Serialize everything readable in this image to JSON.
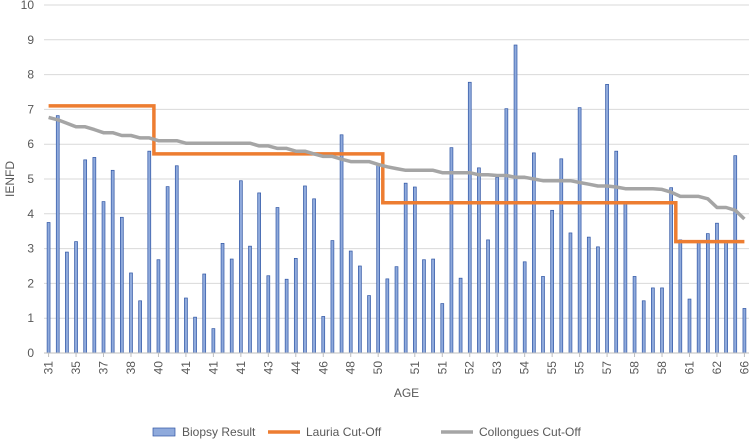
{
  "chart_data": {
    "type": "bar",
    "xlabel": "AGE",
    "ylabel": "IENFD",
    "ylim": [
      0,
      10
    ],
    "yticks": [
      0,
      1,
      2,
      3,
      4,
      5,
      6,
      7,
      8,
      9,
      10
    ],
    "grid": "horizontal",
    "legend_position": "bottom",
    "colors": {
      "bar_fill": "#8FAADC",
      "bar_stroke": "#2F55A4",
      "lauria": "#ED7D31",
      "collongues": "#A5A5A5",
      "grid": "#D9D9D9",
      "axis": "#BFBFBF"
    },
    "x_tick_labels": [
      "31",
      "35",
      "37",
      "38",
      "40",
      "41",
      "41",
      "41",
      "43",
      "44",
      "46",
      "48",
      "50",
      "51",
      "51",
      "52",
      "53",
      "54",
      "55",
      "55",
      "57",
      "58",
      "58",
      "61",
      "62",
      "66"
    ],
    "series": [
      {
        "name": "Biopsy Result",
        "kind": "bar",
        "values": [
          3.75,
          6.82,
          2.9,
          3.2,
          5.55,
          5.62,
          4.35,
          5.25,
          3.9,
          2.3,
          1.5,
          5.8,
          2.68,
          4.78,
          5.38,
          1.58,
          1.03,
          2.27,
          0.7,
          3.15,
          2.7,
          4.95,
          3.07,
          4.6,
          2.22,
          4.18,
          2.12,
          2.72,
          4.8,
          4.43,
          1.05,
          3.23,
          6.27,
          2.93,
          2.5,
          1.65,
          5.43,
          2.13,
          2.48,
          4.88,
          4.77,
          2.68,
          2.7,
          1.42,
          5.9,
          2.15,
          7.78,
          5.32,
          3.25,
          5.05,
          7.02,
          8.85,
          2.62,
          5.75,
          2.2,
          4.1,
          5.58,
          3.45,
          7.05,
          3.33,
          3.05,
          7.72,
          5.8,
          4.28,
          2.2,
          1.5,
          1.87,
          1.87,
          4.75,
          3.25,
          1.55,
          3.22,
          3.43,
          3.73,
          3.2,
          5.67,
          1.28
        ]
      },
      {
        "name": "Lauria Cut-Off",
        "kind": "step-line",
        "steps": [
          {
            "from_bar": 0,
            "to_bar": 11,
            "value": 7.1
          },
          {
            "from_bar": 12,
            "to_bar": 36,
            "value": 5.72
          },
          {
            "from_bar": 37,
            "to_bar": 68,
            "value": 4.32
          },
          {
            "from_bar": 69,
            "to_bar": 76,
            "value": 3.2
          }
        ]
      },
      {
        "name": "Collongues Cut-Off",
        "kind": "line",
        "values": [
          6.77,
          6.7,
          6.6,
          6.5,
          6.5,
          6.42,
          6.33,
          6.33,
          6.25,
          6.25,
          6.18,
          6.18,
          6.1,
          6.1,
          6.1,
          6.03,
          6.03,
          6.03,
          6.03,
          6.03,
          6.03,
          6.03,
          6.03,
          5.95,
          5.95,
          5.88,
          5.88,
          5.8,
          5.8,
          5.72,
          5.65,
          5.65,
          5.57,
          5.5,
          5.5,
          5.5,
          5.42,
          5.35,
          5.3,
          5.25,
          5.25,
          5.25,
          5.25,
          5.18,
          5.18,
          5.18,
          5.18,
          5.12,
          5.12,
          5.1,
          5.1,
          5.05,
          5.05,
          5.0,
          4.95,
          4.95,
          4.95,
          4.95,
          4.9,
          4.85,
          4.8,
          4.8,
          4.77,
          4.72,
          4.72,
          4.72,
          4.72,
          4.7,
          4.62,
          4.5,
          4.5,
          4.5,
          4.43,
          4.18,
          4.18,
          4.1,
          3.85
        ]
      }
    ]
  }
}
